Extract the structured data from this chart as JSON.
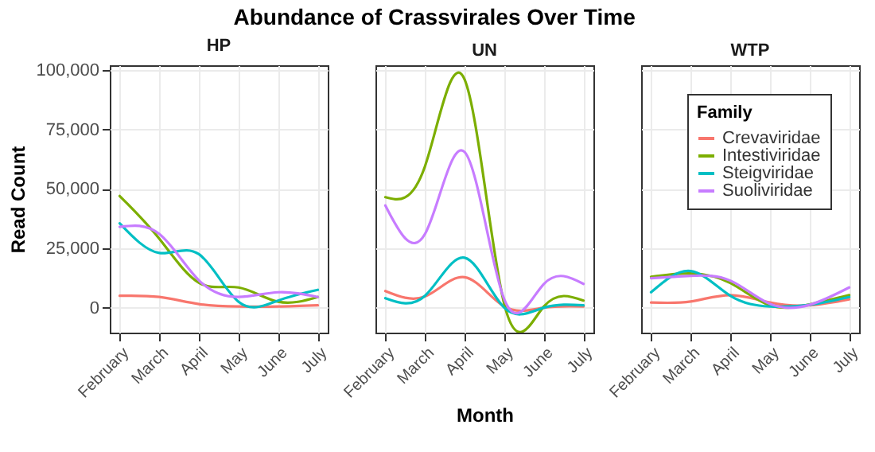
{
  "chart_data": [
    {
      "type": "line",
      "subtitle": "HP",
      "ylabel": "Read Count",
      "categories": [
        "February",
        "March",
        "April",
        "May",
        "June",
        "July"
      ],
      "ylim": [
        -10500,
        102000
      ],
      "yticks": [
        {
          "value": 0,
          "label": "0"
        },
        {
          "value": 25000,
          "label": "25,000"
        },
        {
          "value": 50000,
          "label": "50,000"
        },
        {
          "value": 75000,
          "label": "75,000"
        },
        {
          "value": 100000,
          "label": "100,000"
        }
      ],
      "grid": true,
      "legend": false,
      "series": [
        {
          "color": "#f8766d",
          "values": [
            5000,
            4500,
            1500,
            500,
            500,
            1000
          ]
        },
        {
          "color": "#7cae00",
          "values": [
            47000,
            29000,
            10500,
            8500,
            2500,
            4500
          ]
        },
        {
          "color": "#00bfc4",
          "values": [
            35500,
            23000,
            22500,
            2500,
            3000,
            7500
          ]
        },
        {
          "color": "#c77cff",
          "values": [
            34000,
            31000,
            11500,
            4500,
            6500,
            4500
          ]
        }
      ]
    },
    {
      "type": "line",
      "title": "Abundance of Crassvirales Over Time",
      "subtitle": "UN",
      "xlabel": "Month",
      "categories": [
        "February",
        "March",
        "April",
        "May",
        "June",
        "July"
      ],
      "ylim": [
        -10500,
        102000
      ],
      "yticks": [
        0,
        25000,
        50000,
        75000,
        100000
      ],
      "grid": true,
      "legend": false,
      "tick_labels": "x",
      "series": [
        {
          "color": "#f8766d",
          "values": [
            7000,
            4700,
            12800,
            500,
            0,
            500
          ]
        },
        {
          "color": "#7cae00",
          "values": [
            46500,
            59500,
            96000,
            1500,
            500,
            3000
          ]
        },
        {
          "color": "#00bfc4",
          "values": [
            4000,
            5000,
            21000,
            0,
            0,
            1000
          ]
        },
        {
          "color": "#c77cff",
          "values": [
            43000,
            31000,
            65500,
            3500,
            10000,
            10000
          ]
        }
      ]
    },
    {
      "type": "line",
      "subtitle": "WTP",
      "legend_title": "Family",
      "categories": [
        "February",
        "March",
        "April",
        "May",
        "June",
        "July"
      ],
      "ylim": [
        -10500,
        102000
      ],
      "yticks": [
        0,
        25000,
        50000,
        75000,
        100000
      ],
      "grid": true,
      "legend": "top right",
      "tick_labels": "x",
      "series": [
        {
          "name": "Crevaviridae",
          "color": "#f8766d",
          "values": [
            2200,
            2600,
            5300,
            2200,
            1000,
            3500
          ]
        },
        {
          "name": "Intestiviridae",
          "color": "#7cae00",
          "values": [
            13000,
            14400,
            10400,
            1000,
            1400,
            5300
          ]
        },
        {
          "name": "Steigviridae",
          "color": "#00bfc4",
          "values": [
            6500,
            15400,
            5000,
            500,
            1200,
            4500
          ]
        },
        {
          "name": "Suoliviridae",
          "color": "#c77cff",
          "values": [
            12400,
            13400,
            11400,
            1600,
            1200,
            8500
          ]
        }
      ]
    }
  ]
}
